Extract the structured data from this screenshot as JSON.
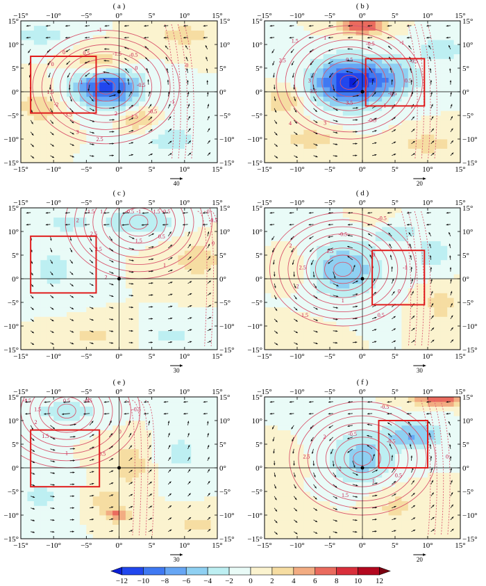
{
  "chart_data": [
    {
      "type": "heatmap",
      "panel_label": "( a )",
      "x_ticks": [
        "−15°",
        "−10°",
        "−5°",
        "0°",
        "5°",
        "10°",
        "15°"
      ],
      "y_ticks": [
        "15°",
        "10°",
        "5°",
        "0°",
        "−5°",
        "−10°",
        "−15°"
      ],
      "xlim": [
        -15,
        15
      ],
      "ylim": [
        -15,
        15
      ],
      "box": {
        "lon": [
          -13.5,
          -3.5
        ],
        "lat": [
          -4.5,
          7.5
        ]
      },
      "shading_centers": [
        {
          "lon": -2,
          "lat": 1,
          "value": -11,
          "sx": 3.5,
          "sy": 3
        },
        {
          "lon": -3,
          "lat": 6,
          "value": 5,
          "sx": 3,
          "sy": 2
        },
        {
          "lon": 3,
          "lat": -6,
          "value": 5,
          "sx": 2,
          "sy": 1.5
        },
        {
          "lon": -12,
          "lat": -3,
          "value": 3,
          "sx": 3,
          "sy": 3
        },
        {
          "lon": 10,
          "lat": 12,
          "value": 3,
          "sx": 3,
          "sy": 2
        },
        {
          "lon": -12,
          "lat": 12,
          "value": -3,
          "sx": 3,
          "sy": 2
        },
        {
          "lon": 8,
          "lat": -10,
          "value": -2.5,
          "sx": 4,
          "sy": 3
        }
      ],
      "contour_labels": [
        "-0.5",
        "-1",
        "-0.5",
        "1.5",
        "2",
        "2.5",
        "3",
        "3.5",
        "-2",
        "1.5",
        "1",
        "0",
        "0",
        "0.5",
        "-1",
        "-1.5",
        "-0.5",
        "0",
        "0"
      ],
      "vector_scale_label": "40"
    },
    {
      "type": "heatmap",
      "panel_label": "( b )",
      "x_ticks": [
        "−15°",
        "−10°",
        "−5°",
        "0°",
        "5°",
        "10°",
        "15°"
      ],
      "y_ticks": [
        "15°",
        "10°",
        "5°",
        "0°",
        "−5°",
        "−10°",
        "−15°"
      ],
      "xlim": [
        -15,
        15
      ],
      "ylim": [
        -15,
        15
      ],
      "box": {
        "lon": [
          0.5,
          9.5
        ],
        "lat": [
          -3,
          7
        ]
      },
      "shading_centers": [
        {
          "lon": -2,
          "lat": 2,
          "value": -12,
          "sx": 4,
          "sy": 3.5
        },
        {
          "lon": 0,
          "lat": 14,
          "value": 8,
          "sx": 2.5,
          "sy": 1.5
        },
        {
          "lon": -12,
          "lat": -2,
          "value": 4,
          "sx": 2,
          "sy": 2
        },
        {
          "lon": 5,
          "lat": 3,
          "value": -4,
          "sx": 3,
          "sy": 3
        },
        {
          "lon": 12,
          "lat": 9,
          "value": -3,
          "sx": 3,
          "sy": 2
        },
        {
          "lon": -8,
          "lat": -10,
          "value": 3,
          "sx": 3,
          "sy": 2
        },
        {
          "lon": 10,
          "lat": -11,
          "value": 3,
          "sx": 3,
          "sy": 2
        }
      ],
      "contour_labels": [
        "0.5",
        "-0.5",
        "-1",
        "-0.5",
        "3.5",
        "3",
        "4",
        "3.5",
        "3",
        "2.5",
        "1.5",
        "1",
        "0.5",
        "-0.5",
        "-1",
        "-0.5"
      ],
      "vector_scale_label": "20"
    },
    {
      "type": "heatmap",
      "panel_label": "( c )",
      "x_ticks": [
        "−15°",
        "−10°",
        "−5°",
        "0°",
        "5°",
        "10°",
        "15°"
      ],
      "y_ticks": [
        "15°",
        "10°",
        "5°",
        "0°",
        "−5°",
        "−10°",
        "−15°"
      ],
      "xlim": [
        -15,
        15
      ],
      "ylim": [
        -15,
        15
      ],
      "box": {
        "lon": [
          -13.5,
          -3.5
        ],
        "lat": [
          -3,
          9
        ]
      },
      "shading_centers": [
        {
          "lon": 3,
          "lat": 12,
          "value": -4,
          "sx": 4,
          "sy": 2
        },
        {
          "lon": -10,
          "lat": 2,
          "value": -2.5,
          "sx": 3,
          "sy": 4
        },
        {
          "lon": -8,
          "lat": 12,
          "value": -2.5,
          "sx": 3,
          "sy": 2
        },
        {
          "lon": 12,
          "lat": 4,
          "value": 3,
          "sx": 3,
          "sy": 3
        },
        {
          "lon": -4,
          "lat": -12,
          "value": 2.5,
          "sx": 4,
          "sy": 2
        },
        {
          "lon": 8,
          "lat": -12,
          "value": -2.5,
          "sx": 3,
          "sy": 2
        }
      ],
      "contour_labels": [
        "-0.5",
        "0",
        "0.5",
        "1",
        "1.5",
        "2",
        "2.5",
        "2.5",
        "2",
        "1.5",
        "1",
        "-0.5",
        "-1",
        "-1.5",
        "-0.5",
        "0"
      ],
      "vector_scale_label": "30"
    },
    {
      "type": "heatmap",
      "panel_label": "( d )",
      "x_ticks": [
        "−15°",
        "−10°",
        "−5°",
        "0°",
        "5°",
        "10°",
        "15°"
      ],
      "y_ticks": [
        "15°",
        "10°",
        "5°",
        "0°",
        "−5°",
        "−10°",
        "−15°"
      ],
      "xlim": [
        -15,
        15
      ],
      "ylim": [
        -15,
        15
      ],
      "box": {
        "lon": [
          1.5,
          9.5
        ],
        "lat": [
          -5.5,
          6
        ]
      },
      "shading_centers": [
        {
          "lon": -3,
          "lat": 2,
          "value": -6,
          "sx": 4,
          "sy": 4
        },
        {
          "lon": 5,
          "lat": 10,
          "value": -3,
          "sx": 3,
          "sy": 2
        },
        {
          "lon": 11,
          "lat": 5,
          "value": -3,
          "sx": 2,
          "sy": 3
        },
        {
          "lon": -10,
          "lat": 2,
          "value": 2,
          "sx": 2,
          "sy": 3
        },
        {
          "lon": 12,
          "lat": -5,
          "value": 3,
          "sx": 2,
          "sy": 3
        },
        {
          "lon": 2,
          "lat": 13,
          "value": 2.5,
          "sx": 2,
          "sy": 1.5
        },
        {
          "lon": -10,
          "lat": -12,
          "value": 2,
          "sx": 3,
          "sy": 2
        }
      ],
      "contour_labels": [
        "-1",
        "0",
        "0.5",
        "1",
        "1.5",
        "2",
        "2.5",
        "2",
        "1.5",
        "-0.5",
        "-0.5",
        "0"
      ],
      "vector_scale_label": "30"
    },
    {
      "type": "heatmap",
      "panel_label": "( e )",
      "x_ticks": [
        "−15°",
        "−10°",
        "−5°",
        "0°",
        "5°",
        "10°",
        "15°"
      ],
      "y_ticks": [
        "15°",
        "10°",
        "5°",
        "0°",
        "−5°",
        "−10°",
        "−15°"
      ],
      "xlim": [
        -15,
        15
      ],
      "ylim": [
        -15,
        15
      ],
      "box": {
        "lon": [
          -13.5,
          -3
        ],
        "lat": [
          -4,
          8
        ]
      },
      "shading_centers": [
        {
          "lon": -8,
          "lat": 12,
          "value": -3,
          "sx": 5,
          "sy": 2
        },
        {
          "lon": 2,
          "lat": 1,
          "value": 3,
          "sx": 2.5,
          "sy": 4
        },
        {
          "lon": 0,
          "lat": -10,
          "value": 6,
          "sx": 1.5,
          "sy": 1
        },
        {
          "lon": -2,
          "lat": -7,
          "value": 3,
          "sx": 2,
          "sy": 2
        },
        {
          "lon": 9,
          "lat": 3,
          "value": -2.5,
          "sx": 3,
          "sy": 4
        },
        {
          "lon": -12,
          "lat": -6,
          "value": -2.5,
          "sx": 3,
          "sy": 3
        },
        {
          "lon": 12,
          "lat": -12,
          "value": 2.5,
          "sx": 3,
          "sy": 2
        }
      ],
      "contour_labels": [
        "-0.5",
        "0",
        "0.5",
        "1",
        "1.5",
        "2",
        "1.5",
        "-1",
        "-1.5",
        "0.5",
        "-1",
        "-0.5"
      ],
      "vector_scale_label": "30"
    },
    {
      "type": "heatmap",
      "panel_label": "( f )",
      "x_ticks": [
        "−15°",
        "−10°",
        "−5°",
        "0°",
        "5°",
        "10°",
        "15°"
      ],
      "y_ticks": [
        "15°",
        "10°",
        "5°",
        "0°",
        "−5°",
        "−10°",
        "−15°"
      ],
      "xlim": [
        -15,
        15
      ],
      "ylim": [
        -15,
        15
      ],
      "box": {
        "lon": [
          2.5,
          10
        ],
        "lat": [
          0,
          10
        ]
      },
      "shading_centers": [
        {
          "lon": 0,
          "lat": 2,
          "value": -5,
          "sx": 3.5,
          "sy": 4
        },
        {
          "lon": 8,
          "lat": 7,
          "value": -6,
          "sx": 3,
          "sy": 2
        },
        {
          "lon": 12,
          "lat": 14.5,
          "value": 8,
          "sx": 3,
          "sy": 1
        },
        {
          "lon": -12,
          "lat": 1,
          "value": 2,
          "sx": 2,
          "sy": 2
        },
        {
          "lon": 5,
          "lat": -8,
          "value": 2.5,
          "sx": 3,
          "sy": 3
        },
        {
          "lon": -12,
          "lat": -10,
          "value": 2,
          "sx": 3,
          "sy": 2
        }
      ],
      "contour_labels": [
        "0",
        "0.5",
        "1",
        "1.5",
        "2",
        "2.5",
        "2",
        "-0.5",
        "-0.5",
        "-0.5"
      ],
      "vector_scale_label": "20"
    }
  ],
  "colorbar": {
    "ticks": [
      "−12",
      "−10",
      "−8",
      "−6",
      "−4",
      "−2",
      "0",
      "2",
      "4",
      "6",
      "8",
      "10",
      "12"
    ],
    "colors": [
      "#0b1fd6",
      "#2147ee",
      "#3f79f2",
      "#66a6f4",
      "#8fd0f2",
      "#bdeff2",
      "#e9fbf7",
      "#fbf3cf",
      "#f6dda2",
      "#f2ac82",
      "#ea6b5e",
      "#d92f3b",
      "#b3081f",
      "#7a0010"
    ]
  }
}
